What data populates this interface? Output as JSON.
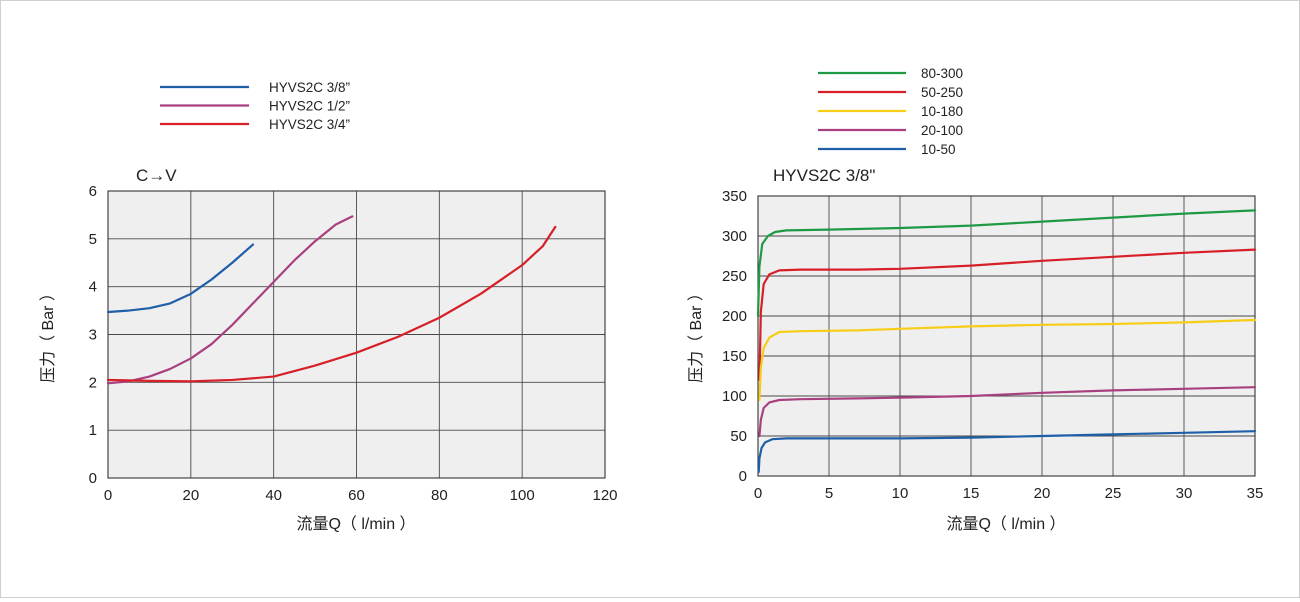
{
  "chart_data": [
    {
      "type": "line",
      "title": "C→V",
      "xlabel": "流量Q（ l/min ）",
      "ylabel": "压力（ Bar ）",
      "xlim": [
        0,
        120
      ],
      "ylim": [
        0,
        6
      ],
      "x_ticks": [
        "0",
        "20",
        "40",
        "60",
        "80",
        "100",
        "120"
      ],
      "y_ticks": [
        "0",
        "1",
        "2",
        "3",
        "4",
        "5",
        "6"
      ],
      "grid": true,
      "legend": "top-left, above plot",
      "series": [
        {
          "name": "HYVS2C 3/8”",
          "color": "#1f5fa8",
          "points": [
            [
              0,
              3.47
            ],
            [
              5,
              3.5
            ],
            [
              10,
              3.55
            ],
            [
              15,
              3.65
            ],
            [
              20,
              3.85
            ],
            [
              25,
              4.15
            ],
            [
              30,
              4.5
            ],
            [
              35,
              4.88
            ]
          ]
        },
        {
          "name": "HYVS2C 1/2”",
          "color": "#a8407f",
          "points": [
            [
              0,
              1.98
            ],
            [
              5,
              2.02
            ],
            [
              10,
              2.12
            ],
            [
              15,
              2.28
            ],
            [
              20,
              2.5
            ],
            [
              25,
              2.8
            ],
            [
              30,
              3.2
            ],
            [
              35,
              3.65
            ],
            [
              40,
              4.1
            ],
            [
              45,
              4.55
            ],
            [
              50,
              4.95
            ],
            [
              55,
              5.3
            ],
            [
              59,
              5.47
            ]
          ]
        },
        {
          "name": "HYVS2C 3/4”",
          "color": "#d71f28",
          "points": [
            [
              0,
              2.05
            ],
            [
              10,
              2.03
            ],
            [
              20,
              2.02
            ],
            [
              30,
              2.05
            ],
            [
              40,
              2.12
            ],
            [
              50,
              2.35
            ],
            [
              60,
              2.62
            ],
            [
              70,
              2.95
            ],
            [
              80,
              3.35
            ],
            [
              90,
              3.85
            ],
            [
              100,
              4.45
            ],
            [
              105,
              4.85
            ],
            [
              108,
              5.25
            ]
          ]
        }
      ]
    },
    {
      "type": "line",
      "title": "HYVS2C 3/8\"",
      "xlabel": "流量Q（ l/min ）",
      "ylabel": "压力（ Bar ）",
      "xlim": [
        0,
        35
      ],
      "ylim": [
        0,
        350
      ],
      "x_ticks": [
        "0",
        "5",
        "10",
        "15",
        "20",
        "25",
        "30",
        "35"
      ],
      "y_ticks": [
        "0",
        "50",
        "100",
        "150",
        "200",
        "250",
        "300",
        "350"
      ],
      "grid": true,
      "legend": "top-center, above plot",
      "series": [
        {
          "name": "80-300",
          "color": "#1e9a45",
          "points": [
            [
              0,
              200
            ],
            [
              0.1,
              262
            ],
            [
              0.3,
              290
            ],
            [
              0.7,
              300
            ],
            [
              1.2,
              305
            ],
            [
              2,
              307
            ],
            [
              5,
              308
            ],
            [
              10,
              310
            ],
            [
              15,
              313
            ],
            [
              20,
              318
            ],
            [
              25,
              323
            ],
            [
              30,
              328
            ],
            [
              35,
              332
            ]
          ]
        },
        {
          "name": "50-250",
          "color": "#d71f28",
          "points": [
            [
              0.1,
              120
            ],
            [
              0.2,
              205
            ],
            [
              0.4,
              240
            ],
            [
              0.8,
              252
            ],
            [
              1.5,
              257
            ],
            [
              3,
              258
            ],
            [
              7,
              258
            ],
            [
              10,
              259
            ],
            [
              15,
              263
            ],
            [
              20,
              269
            ],
            [
              25,
              274
            ],
            [
              30,
              279
            ],
            [
              35,
              283
            ]
          ]
        },
        {
          "name": "10-180",
          "color": "#f7cd18",
          "points": [
            [
              0.1,
              95
            ],
            [
              0.2,
              135
            ],
            [
              0.4,
              160
            ],
            [
              0.8,
              173
            ],
            [
              1.5,
              180
            ],
            [
              3,
              181
            ],
            [
              7,
              182
            ],
            [
              10,
              184
            ],
            [
              15,
              187
            ],
            [
              20,
              189
            ],
            [
              25,
              190
            ],
            [
              30,
              192
            ],
            [
              35,
              195
            ]
          ]
        },
        {
          "name": "20-100",
          "color": "#a8407f",
          "points": [
            [
              0.1,
              50
            ],
            [
              0.2,
              70
            ],
            [
              0.4,
              85
            ],
            [
              0.8,
              92
            ],
            [
              1.5,
              95
            ],
            [
              3,
              96
            ],
            [
              7,
              97
            ],
            [
              10,
              98
            ],
            [
              15,
              100
            ],
            [
              20,
              104
            ],
            [
              25,
              107
            ],
            [
              30,
              109
            ],
            [
              35,
              111
            ]
          ]
        },
        {
          "name": "10-50",
          "color": "#1f5fa8",
          "points": [
            [
              0.05,
              5
            ],
            [
              0.1,
              22
            ],
            [
              0.25,
              35
            ],
            [
              0.5,
              42
            ],
            [
              1,
              46
            ],
            [
              2,
              47
            ],
            [
              5,
              47
            ],
            [
              10,
              47
            ],
            [
              15,
              48
            ],
            [
              20,
              50
            ],
            [
              25,
              52
            ],
            [
              30,
              54
            ],
            [
              35,
              56
            ]
          ]
        }
      ]
    }
  ]
}
